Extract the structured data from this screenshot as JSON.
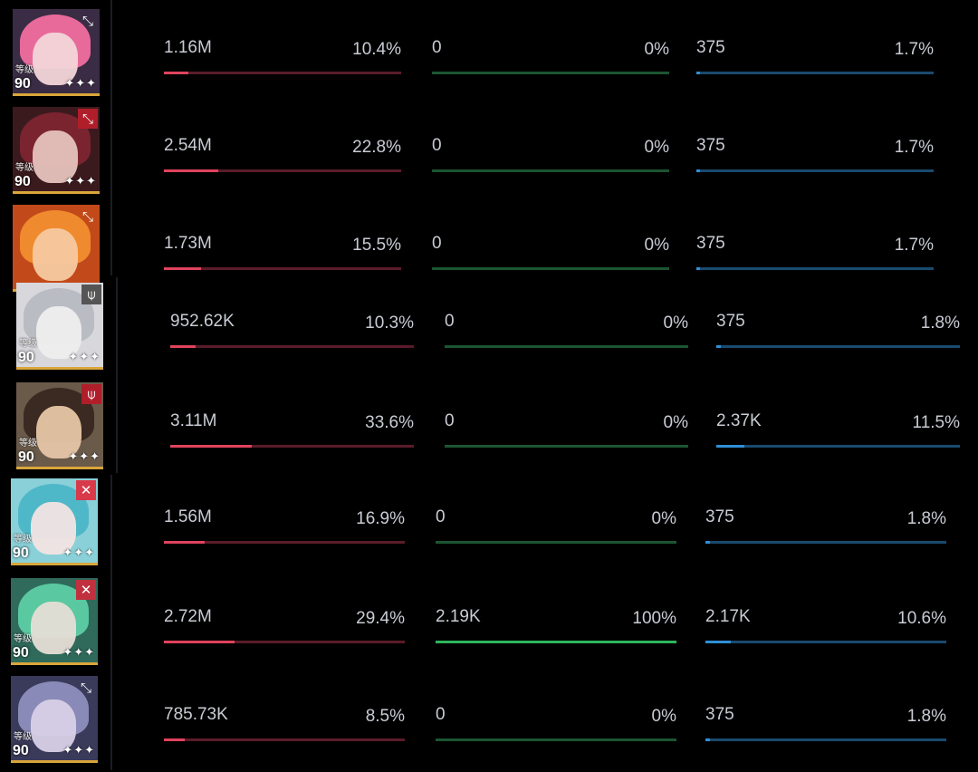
{
  "characters": [
    {
      "name_tag": "char-1",
      "level_label": "等级",
      "level": "90",
      "stars": "✦✦✦",
      "class_icon": "bow-icon",
      "class_glyph": "⤡",
      "bg": "#3a2c44",
      "hair": "#e86a9a",
      "face": "#f2d6d8",
      "icon_bg": "",
      "metrics": {
        "damage": {
          "value": "1.16M",
          "pct": "10.4%",
          "ratio": 0.104
        },
        "heal": {
          "value": "0",
          "pct": "0%",
          "ratio": 0
        },
        "shield": {
          "value": "375",
          "pct": "1.7%",
          "ratio": 0.017
        }
      }
    },
    {
      "name_tag": "char-2",
      "level_label": "等级",
      "level": "90",
      "stars": "✦✦✦",
      "class_icon": "bow-icon",
      "class_glyph": "⤡",
      "bg": "#3b1a1e",
      "hair": "#7a2430",
      "face": "#e6c3bd",
      "icon_bg": "#b01e2a",
      "metrics": {
        "damage": {
          "value": "2.54M",
          "pct": "22.8%",
          "ratio": 0.228
        },
        "heal": {
          "value": "0",
          "pct": "0%",
          "ratio": 0
        },
        "shield": {
          "value": "375",
          "pct": "1.7%",
          "ratio": 0.017
        }
      }
    },
    {
      "name_tag": "char-3",
      "level_label": "",
      "level": "",
      "stars": "",
      "class_icon": "bow-icon",
      "class_glyph": "⤡",
      "bg": "#c24a1a",
      "hair": "#f08a2e",
      "face": "#f5c9a0",
      "icon_bg": "",
      "metrics": {
        "damage": {
          "value": "1.73M",
          "pct": "15.5%",
          "ratio": 0.155
        },
        "heal": {
          "value": "0",
          "pct": "0%",
          "ratio": 0
        },
        "shield": {
          "value": "375",
          "pct": "1.7%",
          "ratio": 0.017
        }
      }
    },
    {
      "name_tag": "char-4",
      "level_label": "等级",
      "level": "90",
      "stars": "✦✦✦",
      "class_icon": "staff-icon",
      "class_glyph": "⍦",
      "bg": "#d8d8dc",
      "hair": "#b9bcc2",
      "face": "#eeeeee",
      "icon_bg": "#555",
      "metrics": {
        "damage": {
          "value": "952.62K",
          "pct": "10.3%",
          "ratio": 0.103
        },
        "heal": {
          "value": "0",
          "pct": "0%",
          "ratio": 0
        },
        "shield": {
          "value": "375",
          "pct": "1.8%",
          "ratio": 0.018
        }
      }
    },
    {
      "name_tag": "char-5",
      "level_label": "等级",
      "level": "90",
      "stars": "✦✦✦",
      "class_icon": "staff-icon",
      "class_glyph": "⍦",
      "bg": "#6a5a4a",
      "hair": "#3a2a22",
      "face": "#e6c6a6",
      "icon_bg": "#b01e2a",
      "metrics": {
        "damage": {
          "value": "3.11M",
          "pct": "33.6%",
          "ratio": 0.336
        },
        "heal": {
          "value": "0",
          "pct": "0%",
          "ratio": 0
        },
        "shield": {
          "value": "2.37K",
          "pct": "11.5%",
          "ratio": 0.115
        }
      }
    },
    {
      "name_tag": "char-6",
      "level_label": "等级",
      "level": "90",
      "stars": "✦✦✦",
      "class_icon": "swords-icon",
      "class_glyph": "✕",
      "bg": "#8ad0d8",
      "hair": "#4fb8c8",
      "face": "#f2e4e4",
      "icon_bg": "#d83a4a",
      "metrics": {
        "damage": {
          "value": "1.56M",
          "pct": "16.9%",
          "ratio": 0.169
        },
        "heal": {
          "value": "0",
          "pct": "0%",
          "ratio": 0
        },
        "shield": {
          "value": "375",
          "pct": "1.8%",
          "ratio": 0.018
        }
      }
    },
    {
      "name_tag": "char-7",
      "level_label": "等级",
      "level": "90",
      "stars": "✦✦✦",
      "class_icon": "swords-icon",
      "class_glyph": "✕",
      "bg": "#2f6a5a",
      "hair": "#5ac8a0",
      "face": "#e6ded6",
      "icon_bg": "#c0303e",
      "metrics": {
        "damage": {
          "value": "2.72M",
          "pct": "29.4%",
          "ratio": 0.294
        },
        "heal": {
          "value": "2.19K",
          "pct": "100%",
          "ratio": 1.0
        },
        "shield": {
          "value": "2.17K",
          "pct": "10.6%",
          "ratio": 0.106
        }
      }
    },
    {
      "name_tag": "char-8",
      "level_label": "等级",
      "level": "90",
      "stars": "✦✦✦",
      "class_icon": "bow-icon",
      "class_glyph": "⤡",
      "bg": "#3a3a5a",
      "hair": "#8a8ab8",
      "face": "#d8d0e6",
      "icon_bg": "",
      "metrics": {
        "damage": {
          "value": "785.73K",
          "pct": "8.5%",
          "ratio": 0.085
        },
        "heal": {
          "value": "0",
          "pct": "0%",
          "ratio": 0
        },
        "shield": {
          "value": "375",
          "pct": "1.8%",
          "ratio": 0.018
        }
      }
    }
  ]
}
